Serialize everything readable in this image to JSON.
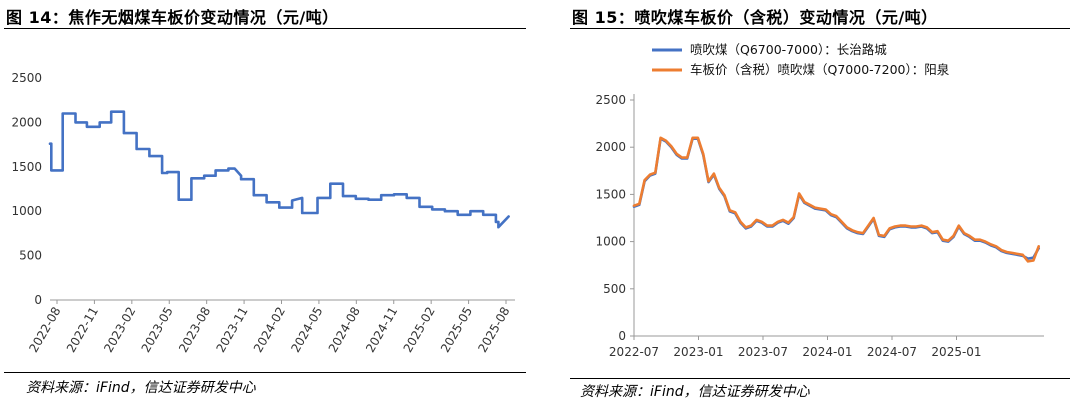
{
  "charts": [
    {
      "figure_title": "图 14：焦作无烟煤车板价变动情况（元/吨）",
      "source": "资料来源：iFind，信达证券研发中心",
      "chart_data": {
        "type": "line",
        "y_ticks": [
          0,
          500,
          1000,
          1500,
          2000,
          2500
        ],
        "ylim": [
          0,
          2500
        ],
        "x_ticks": [
          "2022-08",
          "2022-11",
          "2023-02",
          "2023-05",
          "2023-08",
          "2023-11",
          "2024-02",
          "2024-05",
          "2024-08",
          "2024-11",
          "2025-02",
          "2025-05",
          "2025-08"
        ],
        "xlim": [
          0,
          36.5
        ],
        "grid": false,
        "legend": "none",
        "colors": [
          "#4472C4"
        ],
        "series": [
          {
            "name": "",
            "x": [
              0,
              0.1,
              0.1,
              1.0,
              1.0,
              2.0,
              2.0,
              2.9,
              2.9,
              3.9,
              3.9,
              4.8,
              4.8,
              5.8,
              5.8,
              6.8,
              6.8,
              7.8,
              7.8,
              8.8,
              8.8,
              9.2,
              9.2,
              10.1,
              10.1,
              11.1,
              11.1,
              12.1,
              12.1,
              13.0,
              13.0,
              14.0,
              14.0,
              14.5,
              15.0,
              15.0,
              16.0,
              16.0,
              17.0,
              17.0,
              18.0,
              18.0,
              19.0,
              19.0,
              19.8,
              19.8,
              21.0,
              21.0,
              22.0,
              22.0,
              23.0,
              23.0,
              24.0,
              24.0,
              25.0,
              25.0,
              26.0,
              26.0,
              27.0,
              27.0,
              28.0,
              28.0,
              29.0,
              29.0,
              30.0,
              30.0,
              31.0,
              31.0,
              32.0,
              32.0,
              33.0,
              33.0,
              34.0,
              34.0,
              35.0,
              35.0,
              35.2,
              35.2,
              36.0
            ],
            "values": [
              1760,
              1760,
              1460,
              1460,
              2100,
              2100,
              2000,
              2000,
              1950,
              1950,
              2000,
              2000,
              2120,
              2120,
              1880,
              1880,
              1700,
              1700,
              1620,
              1620,
              1430,
              1430,
              1440,
              1440,
              1130,
              1130,
              1370,
              1370,
              1400,
              1400,
              1460,
              1460,
              1480,
              1480,
              1400,
              1360,
              1360,
              1180,
              1180,
              1100,
              1100,
              1040,
              1040,
              1120,
              1150,
              980,
              980,
              1150,
              1150,
              1310,
              1310,
              1170,
              1170,
              1140,
              1140,
              1130,
              1130,
              1180,
              1180,
              1190,
              1190,
              1150,
              1150,
              1050,
              1050,
              1020,
              1020,
              1000,
              1000,
              960,
              960,
              1000,
              1000,
              960,
              960,
              880,
              880,
              820,
              940
            ]
          }
        ]
      }
    },
    {
      "figure_title": "图 15：喷吹煤车板价（含税）变动情况（元/吨）",
      "source": "资料来源：iFind，信达证券研发中心",
      "chart_data": {
        "type": "line",
        "y_ticks": [
          0,
          500,
          1000,
          1500,
          2000,
          2500
        ],
        "ylim": [
          0,
          2500
        ],
        "x_ticks": [
          "2022-07",
          "2023-01",
          "2023-07",
          "2024-01",
          "2024-07",
          "2025-01"
        ],
        "xlim": [
          0,
          38.5
        ],
        "grid": false,
        "legend": "top-left",
        "colors": [
          "#4472C4",
          "#ED7D31"
        ],
        "series": [
          {
            "name": "喷吹煤（Q6700-7000）：长治路城",
            "x": [
              0,
              0.5,
              1.0,
              1.5,
              2.0,
              2.5,
              3.0,
              3.5,
              4.0,
              4.5,
              5.0,
              5.5,
              6.0,
              6.5,
              7.0,
              7.5,
              8.0,
              8.5,
              9.0,
              9.5,
              10.0,
              10.5,
              11.0,
              11.5,
              12.0,
              12.5,
              13.0,
              13.5,
              14.0,
              14.5,
              15.0,
              15.5,
              16.0,
              16.5,
              17.0,
              17.5,
              18.0,
              18.5,
              19.0,
              19.5,
              20.0,
              20.5,
              21.0,
              21.5,
              22.0,
              22.5,
              23.0,
              23.5,
              24.0,
              24.5,
              25.0,
              25.5,
              26.0,
              26.5,
              27.0,
              27.5,
              28.0,
              28.5,
              29.0,
              29.5,
              30.0,
              30.5,
              31.0,
              31.5,
              32.0,
              32.5,
              33.0,
              33.5,
              34.0,
              34.5,
              35.0,
              35.5,
              36.0,
              36.5,
              37.0,
              37.5,
              38.0
            ],
            "values": [
              1370,
              1390,
              1640,
              1700,
              1720,
              2090,
              2060,
              2000,
              1920,
              1880,
              1880,
              2090,
              2090,
              1920,
              1630,
              1710,
              1560,
              1480,
              1320,
              1300,
              1200,
              1140,
              1160,
              1220,
              1200,
              1160,
              1160,
              1200,
              1220,
              1190,
              1250,
              1500,
              1410,
              1380,
              1350,
              1340,
              1330,
              1280,
              1260,
              1200,
              1140,
              1110,
              1090,
              1080,
              1160,
              1240,
              1060,
              1050,
              1130,
              1150,
              1160,
              1160,
              1150,
              1150,
              1160,
              1140,
              1090,
              1100,
              1010,
              1000,
              1050,
              1160,
              1080,
              1050,
              1010,
              1010,
              990,
              960,
              940,
              900,
              880,
              870,
              860,
              850,
              820,
              830,
              930
            ]
          },
          {
            "name": "车板价（含税）喷吹煤（Q7000-7200）：阳泉",
            "x": [
              0,
              0.5,
              1.0,
              1.5,
              2.0,
              2.5,
              3.0,
              3.5,
              4.0,
              4.5,
              5.0,
              5.5,
              6.0,
              6.5,
              7.0,
              7.5,
              8.0,
              8.5,
              9.0,
              9.5,
              10.0,
              10.5,
              11.0,
              11.5,
              12.0,
              12.5,
              13.0,
              13.5,
              14.0,
              14.5,
              15.0,
              15.5,
              16.0,
              16.5,
              17.0,
              17.5,
              18.0,
              18.5,
              19.0,
              19.5,
              20.0,
              20.5,
              21.0,
              21.5,
              22.0,
              22.5,
              23.0,
              23.5,
              24.0,
              24.5,
              25.0,
              25.5,
              26.0,
              26.5,
              27.0,
              27.5,
              28.0,
              28.5,
              29.0,
              29.5,
              30.0,
              30.5,
              31.0,
              31.5,
              32.0,
              32.5,
              33.0,
              33.5,
              34.0,
              34.5,
              35.0,
              35.5,
              36.0,
              36.5,
              37.0,
              37.5,
              38.0
            ],
            "values": [
              1380,
              1400,
              1650,
              1710,
              1730,
              2100,
              2070,
              2010,
              1930,
              1890,
              1890,
              2100,
              2100,
              1930,
              1640,
              1720,
              1570,
              1490,
              1330,
              1310,
              1210,
              1150,
              1170,
              1230,
              1210,
              1170,
              1170,
              1210,
              1230,
              1200,
              1260,
              1510,
              1420,
              1390,
              1360,
              1350,
              1340,
              1290,
              1270,
              1210,
              1150,
              1120,
              1100,
              1090,
              1170,
              1250,
              1070,
              1060,
              1140,
              1160,
              1170,
              1170,
              1160,
              1160,
              1170,
              1150,
              1100,
              1110,
              1020,
              1010,
              1060,
              1170,
              1090,
              1060,
              1020,
              1020,
              1000,
              970,
              950,
              910,
              890,
              880,
              870,
              860,
              790,
              800,
              950
            ]
          }
        ]
      }
    }
  ]
}
